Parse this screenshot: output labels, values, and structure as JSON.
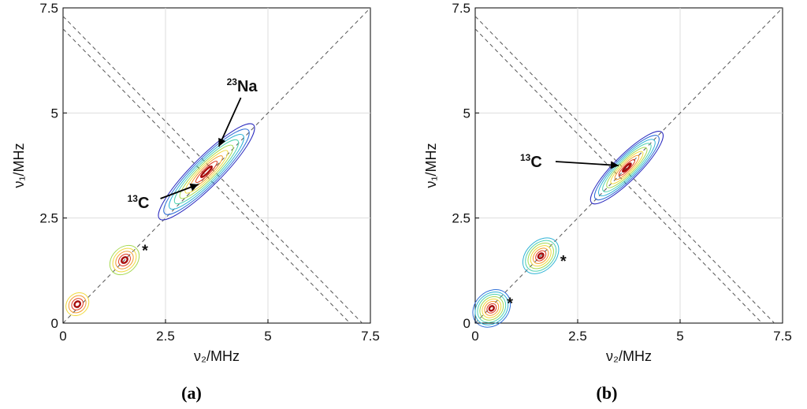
{
  "chart_data": [
    {
      "type": "contour",
      "panel_label": "(a)",
      "xlabel": "ν₂/MHz",
      "ylabel": "ν₁/MHz",
      "xlim": [
        0,
        7.5
      ],
      "ylim": [
        0,
        7.5
      ],
      "ticks": [
        "0",
        "2.5",
        "5",
        "7.5"
      ],
      "tick_values": [
        0,
        2.5,
        5,
        7.5
      ],
      "grid": true,
      "diagonal": true,
      "antidiagonals": [
        7.0,
        7.3
      ],
      "peaks": [
        {
          "x": 3.5,
          "y": 3.6,
          "intensity": 1.0,
          "spread_major": 1.6,
          "spread_minor": 0.35
        },
        {
          "x": 1.5,
          "y": 1.5,
          "intensity": 0.55,
          "spread_major": 0.4,
          "spread_minor": 0.3
        },
        {
          "x": 0.35,
          "y": 0.45,
          "intensity": 0.45,
          "spread_major": 0.3,
          "spread_minor": 0.25
        }
      ],
      "annotations": [
        {
          "sup": "23",
          "text": "Na",
          "x": 3.8,
          "y": 4.2
        },
        {
          "sup": "13",
          "text": "C",
          "x": 3.3,
          "y": 3.3
        },
        {
          "sup": "",
          "text": "*",
          "x": 2.0,
          "y": 1.6
        }
      ]
    },
    {
      "type": "contour",
      "panel_label": "(b)",
      "xlabel": "ν₂/MHz",
      "ylabel": "ν₁/MHz",
      "xlim": [
        0,
        7.5
      ],
      "ylim": [
        0,
        7.5
      ],
      "ticks": [
        "0",
        "2.5",
        "5",
        "7.5"
      ],
      "tick_values": [
        0,
        2.5,
        5,
        7.5
      ],
      "grid": true,
      "diagonal": true,
      "antidiagonals": [
        7.0,
        7.3
      ],
      "peaks": [
        {
          "x": 3.7,
          "y": 3.7,
          "intensity": 1.0,
          "spread_major": 1.2,
          "spread_minor": 0.3
        },
        {
          "x": 1.6,
          "y": 1.6,
          "intensity": 0.8,
          "spread_major": 0.5,
          "spread_minor": 0.35
        },
        {
          "x": 0.4,
          "y": 0.35,
          "intensity": 0.9,
          "spread_major": 0.5,
          "spread_minor": 0.4
        }
      ],
      "annotations": [
        {
          "sup": "13",
          "text": "C",
          "x": 3.5,
          "y": 3.75
        },
        {
          "sup": "",
          "text": "*",
          "x": 2.15,
          "y": 1.35
        },
        {
          "sup": "",
          "text": "*",
          "x": 0.85,
          "y": 0.35
        }
      ]
    }
  ],
  "palette": [
    "#2b2bbf",
    "#2f6fd8",
    "#2fb3d6",
    "#4fd2b0",
    "#a5d94f",
    "#f0d93a",
    "#f29a2e",
    "#e03a1e",
    "#a80d0d"
  ],
  "colors": {
    "axis": "#000000",
    "grid": "#dddddd",
    "dashed": "#555555"
  }
}
